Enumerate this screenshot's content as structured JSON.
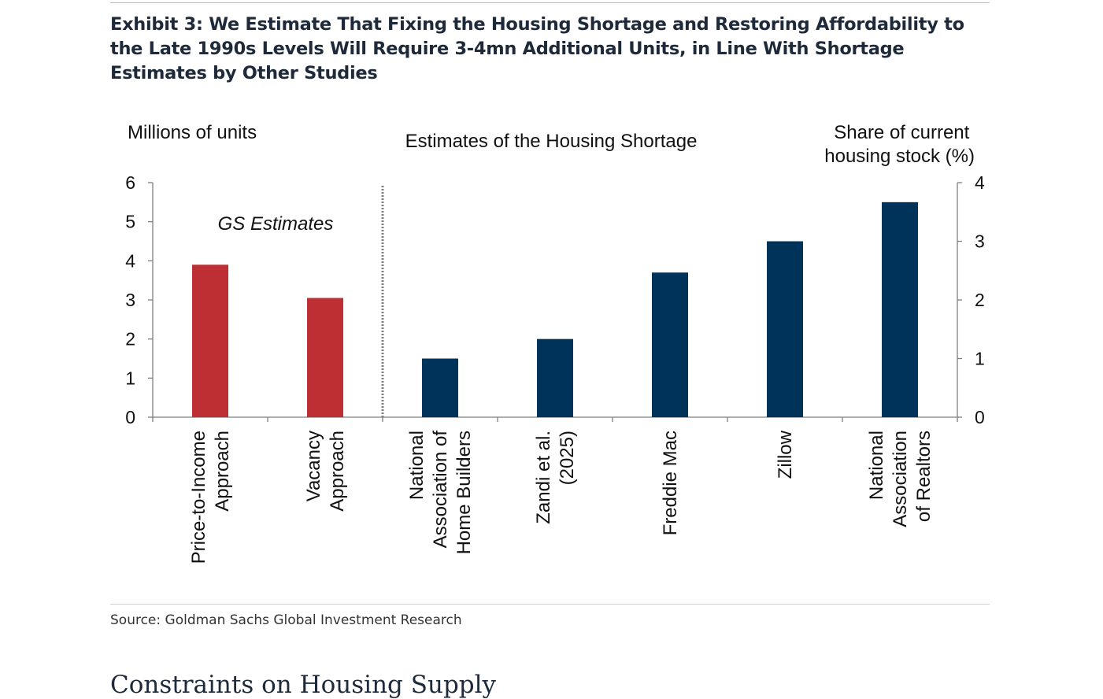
{
  "exhibit_title": "Exhibit 3: We Estimate That Fixing the Housing Shortage and Restoring Affordability to the Late 1990s Levels Will Require 3-4mn Additional Units, in Line With Shortage Estimates by Other Studies",
  "source": "Source: Goldman Sachs Global Investment Research",
  "section_heading": "Constraints on Housing Supply",
  "colors": {
    "gs_bar": "#be2f33",
    "other_bar": "#003359",
    "axis": "#7f7f7f",
    "divider": "#7f7f7f"
  },
  "chart_data": {
    "type": "bar",
    "title": "Estimates of the Housing Shortage",
    "ylabel_left": "Millions of units",
    "ylabel_right": [
      "Share of current",
      "housing stock (%)"
    ],
    "ylim_left": [
      0,
      6
    ],
    "yticks_left": [
      "0",
      "1",
      "2",
      "3",
      "4",
      "5",
      "6"
    ],
    "ylim_right": [
      0,
      4
    ],
    "yticks_right": [
      "0",
      "1",
      "2",
      "3",
      "4"
    ],
    "annotation": "GS Estimates",
    "grid": false,
    "categories": [
      [
        "Price-to-Income",
        "Approach"
      ],
      [
        "Vacancy",
        "Approach"
      ],
      [
        "National",
        "Association of",
        "Home Builders"
      ],
      [
        "Zandi et al.",
        "(2025)"
      ],
      [
        "Freddie Mac"
      ],
      [
        "Zillow"
      ],
      [
        "National",
        "Association",
        "of Realtors"
      ]
    ],
    "values": [
      3.9,
      3.05,
      1.5,
      2.0,
      3.7,
      4.5,
      5.5
    ],
    "groups": [
      "gs",
      "gs",
      "other",
      "other",
      "other",
      "other",
      "other"
    ]
  }
}
